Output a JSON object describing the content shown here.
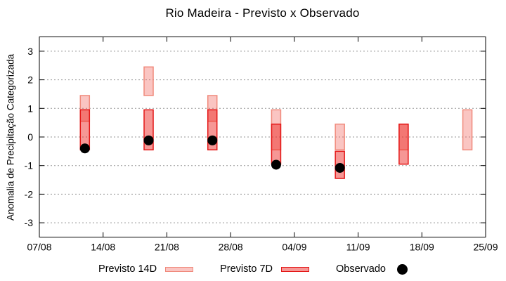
{
  "chart_data": {
    "type": "candlestick",
    "title": "Rio Madeira - Previsto x Observado",
    "ylabel": "Anomalia de Preciptação Categorizada",
    "ylabel_text": "Anomalia de Precipitação Categorizada",
    "xlabel": "",
    "ylim": [
      -3.5,
      3.5
    ],
    "yticks": [
      -3,
      -2,
      -1,
      0,
      1,
      2,
      3
    ],
    "xticks": [
      "07/08",
      "14/08",
      "21/08",
      "28/08",
      "04/09",
      "11/09",
      "18/09",
      "25/09"
    ],
    "grid": "horizontal-dotted",
    "legend_position": "bottom-center",
    "legend_items": [
      {
        "label": "Previsto 14D",
        "marker": "pink-box"
      },
      {
        "label": "Previsto 7D",
        "marker": "red-box"
      },
      {
        "label": "Observado",
        "marker": "black-dot"
      }
    ],
    "series_note": "each group: previsto_14d and previsto_7d are vertical value ranges [low, high]; observado is a point value; null = not shown",
    "groups": [
      {
        "date": "12/08",
        "previsto_14d": {
          "low": 0.55,
          "high": 1.45
        },
        "previsto_7d": {
          "low": -0.45,
          "high": 0.95
        },
        "observado": -0.4
      },
      {
        "date": "19/08",
        "previsto_14d": {
          "low": 1.45,
          "high": 2.45
        },
        "previsto_7d": {
          "low": -0.45,
          "high": 0.95
        },
        "observado": -0.12
      },
      {
        "date": "26/08",
        "previsto_14d": {
          "low": 0.55,
          "high": 1.45
        },
        "previsto_7d": {
          "low": -0.45,
          "high": 0.95
        },
        "observado": -0.12
      },
      {
        "date": "02/09",
        "previsto_14d": {
          "low": -0.45,
          "high": 0.95
        },
        "previsto_7d": {
          "low": -0.95,
          "high": 0.45
        },
        "observado": -0.97
      },
      {
        "date": "09/09",
        "previsto_14d": {
          "low": -0.45,
          "high": 0.45
        },
        "previsto_7d": {
          "low": -1.45,
          "high": -0.5
        },
        "observado": -1.08
      },
      {
        "date": "16/09",
        "previsto_14d": {
          "low": -0.45,
          "high": 0.45
        },
        "previsto_7d": {
          "low": -0.95,
          "high": 0.45
        },
        "observado": null
      },
      {
        "date": "23/09",
        "previsto_14d": {
          "low": -0.45,
          "high": 0.95
        },
        "previsto_7d": null,
        "observado": null
      }
    ],
    "colors": {
      "previsto_14d_fill": "rgba(240,90,80,0.35)",
      "previsto_14d_border": "#f08a7c",
      "previsto_7d_fill": "rgba(235,25,20,0.45)",
      "previsto_7d_border": "#e41717",
      "observado": "#000000",
      "grid": "#959595",
      "axis": "#000000",
      "background": "#ffffff"
    }
  }
}
